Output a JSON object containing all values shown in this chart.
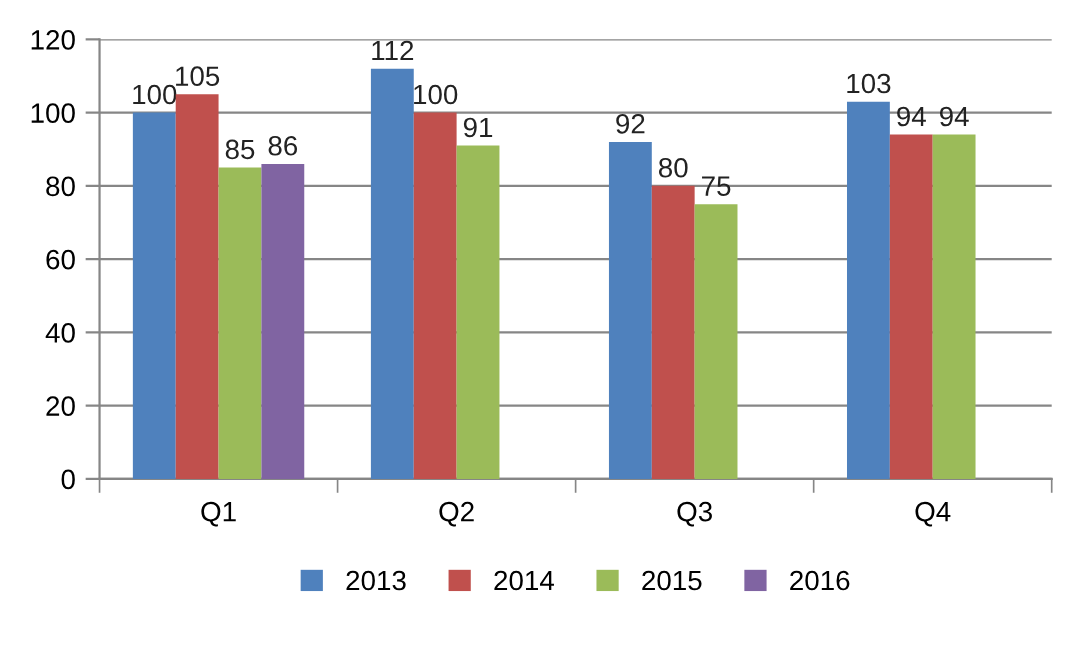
{
  "chart_data": {
    "type": "bar",
    "categories": [
      "Q1",
      "Q2",
      "Q3",
      "Q4"
    ],
    "series": [
      {
        "name": "2013",
        "color": "#4f81bd",
        "values": [
          100,
          112,
          92,
          103
        ]
      },
      {
        "name": "2014",
        "color": "#c0504d",
        "values": [
          105,
          100,
          80,
          94
        ]
      },
      {
        "name": "2015",
        "color": "#9bbb59",
        "values": [
          85,
          91,
          75,
          94
        ]
      },
      {
        "name": "2016",
        "color": "#8064a2",
        "values": [
          86,
          null,
          null,
          null
        ]
      }
    ],
    "ylim": [
      0,
      120
    ],
    "yticks": [
      0,
      20,
      40,
      60,
      80,
      100,
      120
    ],
    "grid": "y",
    "legend": "bottom",
    "data_labels": true
  }
}
